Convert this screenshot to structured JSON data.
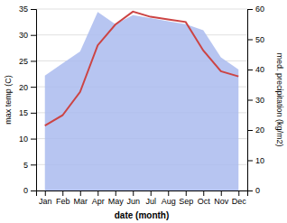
{
  "chart_data": {
    "type": "line",
    "xlabel": "date (month)",
    "ylabel": "max temp (C)",
    "y2label": "med. precipitation (kg/m2)",
    "categories": [
      "Jan",
      "Feb",
      "Mar",
      "Apr",
      "May",
      "Jun",
      "Jul",
      "Aug",
      "Sep",
      "Oct",
      "Nov",
      "Dec"
    ],
    "series": [
      {
        "type": "area",
        "axis": "y2",
        "color": "#aabbee",
        "values": [
          38,
          42,
          46,
          59,
          55,
          58,
          57,
          56,
          55,
          53,
          44,
          40
        ]
      },
      {
        "type": "line",
        "color": "#cc4444",
        "values": [
          12.5,
          14.5,
          19.0,
          28.0,
          32.0,
          34.5,
          33.5,
          33.0,
          32.5,
          27.0,
          23.0,
          22.0
        ]
      }
    ],
    "ylim": [
      0,
      35
    ],
    "yticks": [
      0,
      5,
      10,
      15,
      20,
      25,
      30,
      35
    ],
    "y2lim": [
      0,
      60
    ],
    "y2ticks": [
      0,
      10,
      20,
      30,
      40,
      50,
      60
    ],
    "grid": true
  }
}
